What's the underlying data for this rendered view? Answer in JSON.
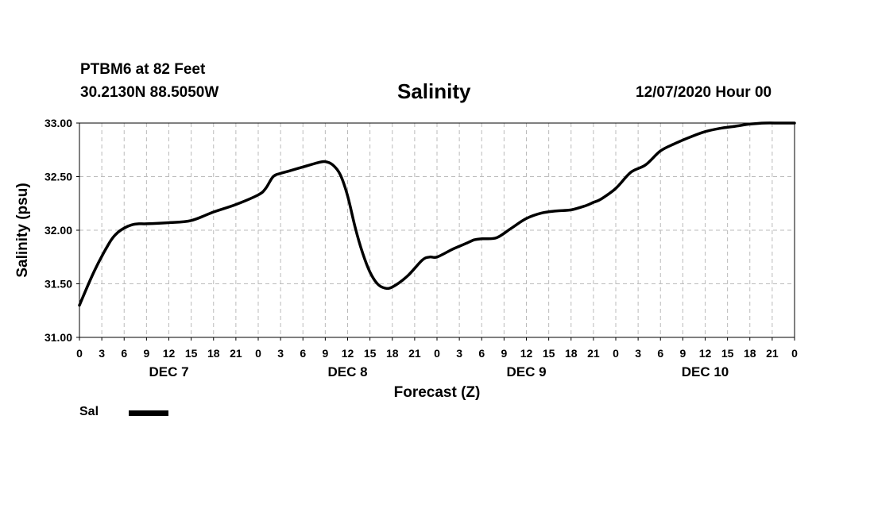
{
  "header": {
    "station": "PTBM6 at 82 Feet",
    "coordinates": "30.2130N 88.5050W",
    "title": "Salinity",
    "timestamp": "12/07/2020 Hour 00"
  },
  "colors": {
    "line": "#000000",
    "grid": "#bbbbbb",
    "axis": "#000000"
  },
  "chart_data": {
    "type": "line",
    "title": "Salinity",
    "xlabel": "Forecast (Z)",
    "ylabel": "Salinity (psu)",
    "ylim": [
      31.0,
      33.0
    ],
    "yticks": [
      "31.00",
      "31.50",
      "32.00",
      "32.50",
      "33.00"
    ],
    "xlim_hours": [
      0,
      96
    ],
    "xtick_labels": [
      "0",
      "3",
      "6",
      "9",
      "12",
      "15",
      "18",
      "21",
      "0",
      "3",
      "6",
      "9",
      "12",
      "15",
      "18",
      "21",
      "0",
      "3",
      "6",
      "9",
      "12",
      "15",
      "18",
      "21",
      "0",
      "3",
      "6",
      "9",
      "12",
      "15",
      "18",
      "21",
      "0"
    ],
    "day_labels": [
      "DEC 7",
      "DEC 8",
      "DEC 9",
      "DEC 10"
    ],
    "grid": true,
    "series": [
      {
        "name": "Sal",
        "x_hours": [
          0,
          2,
          4,
          5,
          6,
          7,
          8,
          9,
          12,
          15,
          18,
          21,
          24,
          25,
          26,
          27,
          28,
          30,
          32,
          33,
          34,
          35,
          36,
          37,
          38,
          39,
          40,
          41,
          42,
          44,
          46,
          47,
          48,
          50,
          51,
          52,
          53,
          54,
          56,
          58,
          60,
          62,
          64,
          66,
          68,
          69,
          70,
          72,
          74,
          76,
          78,
          80,
          82,
          84,
          86,
          88,
          90,
          92,
          94,
          96
        ],
        "values": [
          31.3,
          31.62,
          31.88,
          31.97,
          32.02,
          32.05,
          32.06,
          32.06,
          32.07,
          32.09,
          32.17,
          32.24,
          32.33,
          32.39,
          32.5,
          32.53,
          32.55,
          32.59,
          32.63,
          32.64,
          32.61,
          32.52,
          32.32,
          32.03,
          31.79,
          31.61,
          31.5,
          31.46,
          31.47,
          31.57,
          31.72,
          31.75,
          31.75,
          31.82,
          31.85,
          31.88,
          31.91,
          31.92,
          31.93,
          32.02,
          32.11,
          32.16,
          32.18,
          32.19,
          32.23,
          32.26,
          32.29,
          32.39,
          32.54,
          32.61,
          32.74,
          32.81,
          32.87,
          32.92,
          32.95,
          32.97,
          32.99,
          33.0,
          33.0,
          33.0
        ]
      }
    ],
    "legend": [
      {
        "label": "Sal"
      }
    ],
    "legend_position": "bottom-left"
  }
}
